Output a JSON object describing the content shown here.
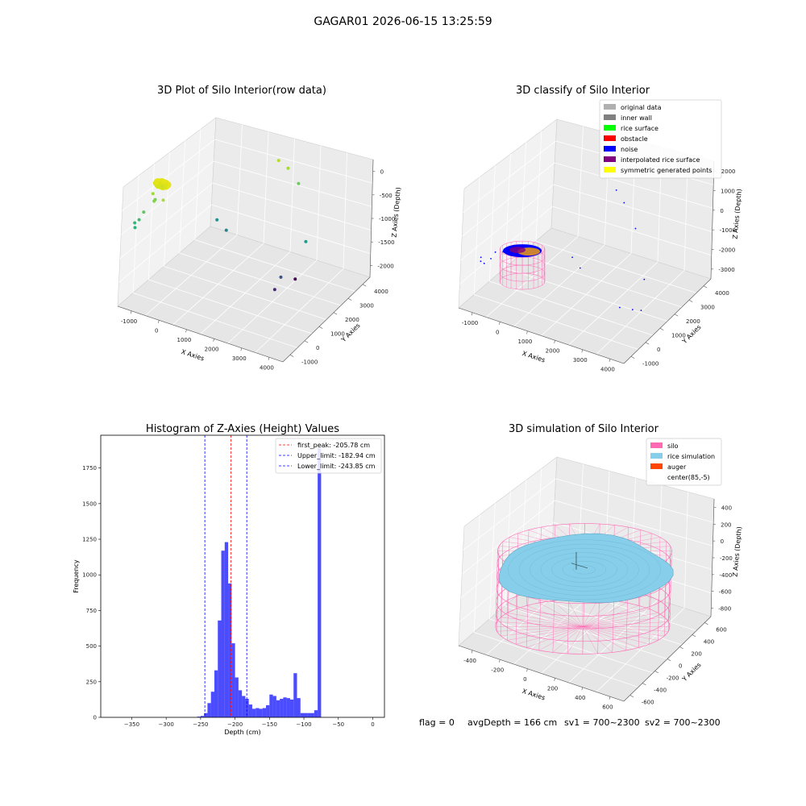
{
  "suptitle": "GAGAR01 2026-06-15 13:25:59",
  "status_line": {
    "flag": "flag = 0",
    "avg_depth": "avgDepth = 166 cm",
    "sv1": "sv1 = 700~2300",
    "sv2": "sv2 = 700~2300"
  },
  "chart_data": [
    {
      "type": "scatter",
      "title": "3D Plot of Silo Interior(row data)",
      "projection": "3d",
      "xlabel": "X Axies",
      "ylabel": "Y Axies",
      "zlabel": "Z Axies (Depth)",
      "x_ticks": [
        "-1000",
        "0",
        "1000",
        "2000",
        "3000",
        "4000"
      ],
      "y_ticks": [
        "-1000",
        "0",
        "1000",
        "2000",
        "3000",
        "4000"
      ],
      "z_ticks": [
        "0",
        "-500",
        "-1000",
        "-1500",
        "-2000"
      ],
      "xlim": [
        -1500,
        4500
      ],
      "ylim": [
        -1200,
        4400
      ],
      "zlim": [
        -2300,
        0
      ],
      "colormap": "viridis (by depth)",
      "points": [
        {
          "x": -900,
          "y": 300,
          "z": -230,
          "color": "#d8e219"
        },
        {
          "x": -820,
          "y": 350,
          "z": -210,
          "color": "#e5e419"
        },
        {
          "x": -700,
          "y": 300,
          "z": -220,
          "color": "#dde318"
        },
        {
          "x": -780,
          "y": 200,
          "z": -250,
          "color": "#c8e020"
        },
        {
          "x": -1050,
          "y": 100,
          "z": -400,
          "color": "#a0da39"
        },
        {
          "x": -950,
          "y": 0,
          "z": -500,
          "color": "#86d549"
        },
        {
          "x": -700,
          "y": 150,
          "z": -480,
          "color": "#a8db34"
        },
        {
          "x": -1200,
          "y": -200,
          "z": -700,
          "color": "#5ec962"
        },
        {
          "x": -1250,
          "y": -400,
          "z": -800,
          "color": "#3fbc73"
        },
        {
          "x": -1350,
          "y": -500,
          "z": -850,
          "color": "#35b779"
        },
        {
          "x": -1280,
          "y": -600,
          "z": -900,
          "color": "#2db27d"
        },
        {
          "x": -1100,
          "y": 350,
          "z": -600,
          "color": "#7ad151"
        },
        {
          "x": 1700,
          "y": 3300,
          "z": -200,
          "color": "#b5de2b"
        },
        {
          "x": 2100,
          "y": 3200,
          "z": -250,
          "color": "#a2da37"
        },
        {
          "x": 2600,
          "y": 3000,
          "z": -400,
          "color": "#6ccd5a"
        },
        {
          "x": 300,
          "y": 1900,
          "z": -1200,
          "color": "#21918c"
        },
        {
          "x": 700,
          "y": 1800,
          "z": -1300,
          "color": "#25858e"
        },
        {
          "x": 3300,
          "y": 2300,
          "z": -1200,
          "color": "#1f9a8a"
        },
        {
          "x": 3200,
          "y": 900,
          "z": -1500,
          "color": "#3b528b"
        },
        {
          "x": 3500,
          "y": 1300,
          "z": -1600,
          "color": "#440154"
        },
        {
          "x": 3100,
          "y": 700,
          "z": -1700,
          "color": "#482878"
        }
      ]
    },
    {
      "type": "scatter",
      "title": "3D classify of Silo Interior",
      "projection": "3d",
      "xlabel": "X Axies",
      "ylabel": "Y Axies",
      "zlabel": "Z Axies (Depth)",
      "x_ticks": [
        "-1000",
        "0",
        "1000",
        "2000",
        "3000",
        "4000"
      ],
      "y_ticks": [
        "-1000",
        "0",
        "1000",
        "2000",
        "3000",
        "4000"
      ],
      "z_ticks": [
        "2000",
        "1000",
        "0",
        "-1000",
        "-2000",
        "-3000"
      ],
      "xlim": [
        -1500,
        4500
      ],
      "ylim": [
        -1200,
        4400
      ],
      "zlim": [
        -3500,
        2500
      ],
      "legend_position": "top-right",
      "legend": [
        {
          "label": "original data",
          "color": "#b0b0b0"
        },
        {
          "label": "inner wall",
          "color": "#808080"
        },
        {
          "label": "rice surface",
          "color": "#00ff00"
        },
        {
          "label": "obstacle",
          "color": "#ff0000"
        },
        {
          "label": "noise",
          "color": "#0000ff"
        },
        {
          "label": "interpolated rice surface",
          "color": "#800080"
        },
        {
          "label": "symmetric generated points",
          "color": "#ffff00"
        }
      ],
      "silo_wireframe_color": "#ff69b4",
      "surface_colors": [
        "#0000ff",
        "#800080",
        "#ffa500"
      ],
      "noise_points": [
        {
          "x": -1400,
          "y": 0,
          "z": -1800
        },
        {
          "x": -1350,
          "y": -100,
          "z": -1900
        },
        {
          "x": -1250,
          "y": -50,
          "z": -2000
        },
        {
          "x": -1150,
          "y": 200,
          "z": -1900
        },
        {
          "x": -1050,
          "y": 300,
          "z": -1600
        },
        {
          "x": -800,
          "y": 350,
          "z": -1500
        },
        {
          "x": 1500,
          "y": 3500,
          "z": 300
        },
        {
          "x": 1900,
          "y": 3300,
          "z": 0
        },
        {
          "x": 2500,
          "y": 3000,
          "z": -800
        },
        {
          "x": 800,
          "y": 2000,
          "z": -2300
        },
        {
          "x": 1200,
          "y": 1800,
          "z": -2500
        },
        {
          "x": 3300,
          "y": 2200,
          "z": -2400
        },
        {
          "x": 3100,
          "y": 1000,
          "z": -3000
        },
        {
          "x": 3400,
          "y": 1300,
          "z": -3200
        },
        {
          "x": 3600,
          "y": 1500,
          "z": -3300
        }
      ]
    },
    {
      "type": "bar",
      "title": "Histogram of Z-Axies (Height) Values",
      "xlabel": "Depth (cm)",
      "ylabel": "Frequency",
      "bar_color": "#0000ff",
      "bar_alpha": 0.7,
      "xlim": [
        -395,
        17
      ],
      "ylim": [
        0,
        1980
      ],
      "x_ticks": [
        -350,
        -300,
        -250,
        -200,
        -150,
        -100,
        -50,
        0
      ],
      "y_ticks": [
        0,
        250,
        500,
        750,
        1000,
        1250,
        1500,
        1750
      ],
      "bin_width": 5,
      "bins_left": [
        -255,
        -250,
        -245,
        -240,
        -235,
        -230,
        -225,
        -220,
        -215,
        -210,
        -205,
        -200,
        -195,
        -190,
        -185,
        -180,
        -175,
        -170,
        -165,
        -160,
        -155,
        -150,
        -145,
        -140,
        -135,
        -130,
        -125,
        -120,
        -115,
        -110,
        -105,
        -100,
        -95,
        -90,
        -85,
        -80,
        -75,
        -70,
        -65,
        -60,
        -55,
        -50,
        -45,
        -40,
        -35,
        -30,
        -25,
        -20,
        -15,
        -10,
        -5
      ],
      "values": [
        5,
        10,
        30,
        100,
        180,
        330,
        680,
        1170,
        1230,
        940,
        520,
        280,
        190,
        150,
        130,
        90,
        60,
        65,
        60,
        65,
        85,
        160,
        150,
        120,
        130,
        140,
        135,
        125,
        310,
        135,
        30,
        30,
        30,
        30,
        50,
        1890,
        0,
        0,
        0,
        0,
        0,
        0,
        0,
        0,
        0,
        0,
        0,
        0,
        0,
        0,
        0
      ],
      "vlines": [
        {
          "x": -205.78,
          "color": "#ff0000",
          "label": "first_peak: -205.78 cm"
        },
        {
          "x": -182.94,
          "color": "#0000ff",
          "label": "Upper_limit: -182.94 cm"
        },
        {
          "x": -243.85,
          "color": "#0000ff",
          "label": "Lower_limit: -243.85 cm"
        }
      ],
      "legend_position": "top-right"
    },
    {
      "type": "area",
      "title": "3D simulation of Silo Interior",
      "projection": "3d",
      "xlabel": "X Axies",
      "ylabel": "Y Axies",
      "zlabel": "Z Axies (Depth)",
      "x_ticks": [
        "-400",
        "-200",
        "0",
        "200",
        "400",
        "600"
      ],
      "y_ticks": [
        "-600",
        "-400",
        "-200",
        "0",
        "200",
        "400",
        "600"
      ],
      "z_ticks": [
        "400",
        "200",
        "0",
        "-200",
        "-400",
        "-600",
        "-800"
      ],
      "xlim": [
        -550,
        750
      ],
      "ylim": [
        -650,
        650
      ],
      "zlim": [
        -950,
        450
      ],
      "legend_position": "top-right",
      "legend": [
        {
          "label": "silo",
          "color": "#ff69b4"
        },
        {
          "label": "rice simulation",
          "color": "#87ceeb"
        },
        {
          "label": "auger",
          "color": "#ff4500"
        },
        {
          "label": "center(85,-5)",
          "color": "#ffffff"
        }
      ],
      "silo": {
        "cx": 85,
        "cy": -5,
        "radius": 600,
        "z_top": 0,
        "z_bottom": -900
      },
      "rice_mean_depth": -166
    }
  ]
}
